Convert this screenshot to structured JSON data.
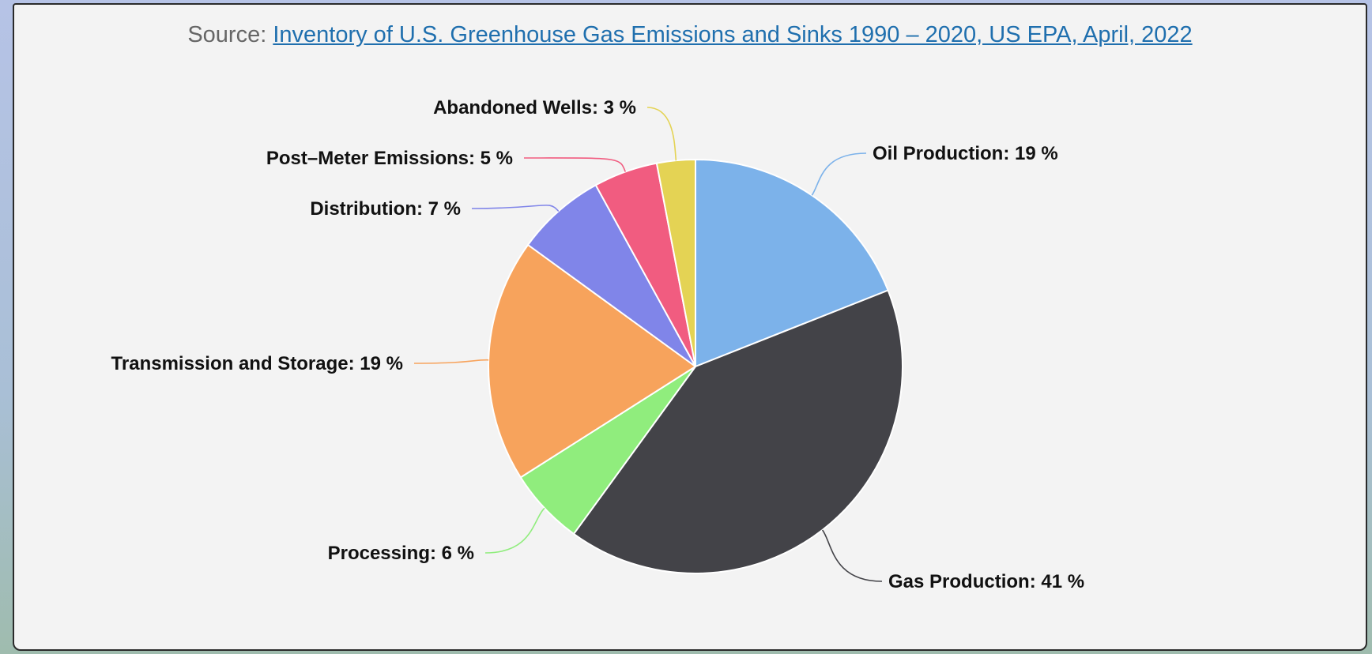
{
  "source": {
    "prefix": "Source:",
    "link_text": "Inventory of U.S. Greenhouse Gas Emissions and Sinks 1990 – 2020, US EPA, April, 2022"
  },
  "chart_data": {
    "type": "pie",
    "start_angle_deg": 0,
    "direction": "clockwise",
    "slices": [
      {
        "name": "Oil Production",
        "value": 19,
        "color": "#7cb2ea",
        "label": "Oil Production: 19 %"
      },
      {
        "name": "Gas Production",
        "value": 41,
        "color": "#434348",
        "label": "Gas Production: 41 %"
      },
      {
        "name": "Processing",
        "value": 6,
        "color": "#90ed7d",
        "label": "Processing: 6 %"
      },
      {
        "name": "Transmission and Storage",
        "value": 19,
        "color": "#f7a35c",
        "label": "Transmission and Storage: 19 %"
      },
      {
        "name": "Distribution",
        "value": 7,
        "color": "#8085e9",
        "label": "Distribution: 7 %"
      },
      {
        "name": "Post-Meter Emissions",
        "value": 5,
        "color": "#f15c80",
        "label": "Post–Meter Emissions: 5 %"
      },
      {
        "name": "Abandoned Wells",
        "value": 3,
        "color": "#e4d354",
        "label": "Abandoned Wells: 3 %"
      }
    ]
  }
}
